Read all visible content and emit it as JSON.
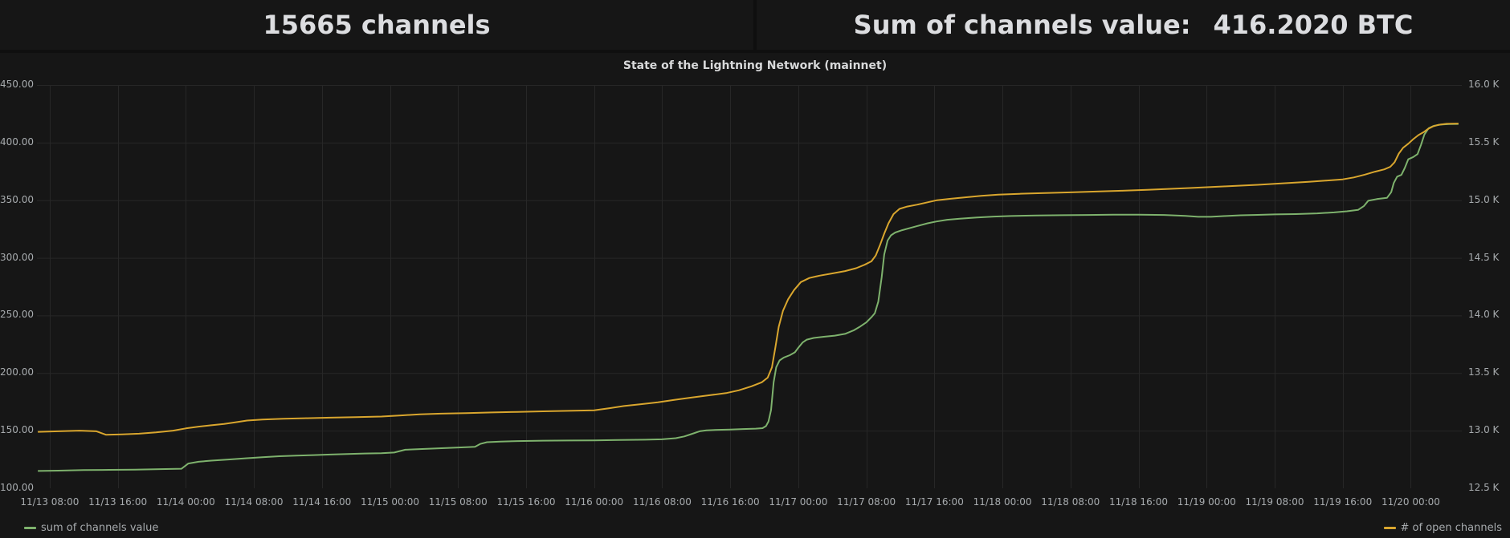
{
  "header": {
    "left_stat": "15665 channels",
    "right_stat_label": "Sum of channels value:",
    "right_stat_value": "416.2020 BTC"
  },
  "chart": {
    "title": "State of the Lightning Network (mainnet)",
    "legend": [
      {
        "label": "sum of channels value"
      },
      {
        "label": "# of open channels"
      }
    ]
  },
  "chart_data": {
    "type": "line",
    "title": "State of the Lightning Network (mainnet)",
    "grid": true,
    "legend_position": "bottom",
    "colors": {
      "grid": "#272727",
      "background": "#161616",
      "tick_text": "#a7abae",
      "green": "#7eb26d",
      "yellow": "#d9a62e"
    },
    "x_unit": "hours since 11/13 00:00",
    "x_range": [
      6.5,
      174
    ],
    "x_ticks": [
      {
        "t": 8,
        "label": "11/13 08:00"
      },
      {
        "t": 16,
        "label": "11/13 16:00"
      },
      {
        "t": 24,
        "label": "11/14 00:00"
      },
      {
        "t": 32,
        "label": "11/14 08:00"
      },
      {
        "t": 40,
        "label": "11/14 16:00"
      },
      {
        "t": 48,
        "label": "11/15 00:00"
      },
      {
        "t": 56,
        "label": "11/15 08:00"
      },
      {
        "t": 64,
        "label": "11/15 16:00"
      },
      {
        "t": 72,
        "label": "11/16 00:00"
      },
      {
        "t": 80,
        "label": "11/16 08:00"
      },
      {
        "t": 88,
        "label": "11/16 16:00"
      },
      {
        "t": 96,
        "label": "11/17 00:00"
      },
      {
        "t": 104,
        "label": "11/17 08:00"
      },
      {
        "t": 112,
        "label": "11/17 16:00"
      },
      {
        "t": 120,
        "label": "11/18 00:00"
      },
      {
        "t": 128,
        "label": "11/18 08:00"
      },
      {
        "t": 136,
        "label": "11/18 16:00"
      },
      {
        "t": 144,
        "label": "11/19 00:00"
      },
      {
        "t": 152,
        "label": "11/19 08:00"
      },
      {
        "t": 160,
        "label": "11/19 16:00"
      },
      {
        "t": 168,
        "label": "11/20 00:00"
      }
    ],
    "left_axis": {
      "range": [
        100,
        450
      ],
      "ticks": [
        100,
        150,
        200,
        250,
        300,
        350,
        400,
        450
      ],
      "labels": [
        "100.00",
        "150.00",
        "200.00",
        "250.00",
        "300.00",
        "350.00",
        "400.00",
        "450.00"
      ],
      "unit": "BTC"
    },
    "right_axis": {
      "range": [
        12.5,
        16.0
      ],
      "ticks": [
        12.5,
        13.0,
        13.5,
        14.0,
        14.5,
        15.0,
        15.5,
        16.0
      ],
      "labels": [
        "12.5 K",
        "13.0 K",
        "13.5 K",
        "14.0 K",
        "14.5 K",
        "15.0 K",
        "15.5 K",
        "16.0 K"
      ],
      "unit": "channels"
    },
    "series": [
      {
        "name": "sum of channels value",
        "axis": "left",
        "color": "#7eb26d",
        "final_value": 416.202,
        "points": [
          [
            6.6,
            115
          ],
          [
            9,
            115.3
          ],
          [
            12,
            115.8
          ],
          [
            15,
            116
          ],
          [
            18,
            116.2
          ],
          [
            21,
            116.6
          ],
          [
            23.5,
            117
          ],
          [
            24.3,
            121.5
          ],
          [
            25.5,
            123
          ],
          [
            27,
            124
          ],
          [
            29,
            125
          ],
          [
            31,
            126
          ],
          [
            33,
            127
          ],
          [
            35,
            127.8
          ],
          [
            37,
            128.3
          ],
          [
            39,
            128.8
          ],
          [
            41,
            129.3
          ],
          [
            43,
            129.8
          ],
          [
            45,
            130.2
          ],
          [
            47,
            130.5
          ],
          [
            48.5,
            131
          ],
          [
            49.8,
            133.5
          ],
          [
            51.5,
            134
          ],
          [
            53.5,
            134.6
          ],
          [
            55.5,
            135.2
          ],
          [
            57.2,
            135.8
          ],
          [
            58,
            136
          ],
          [
            58.6,
            138.5
          ],
          [
            59.4,
            140
          ],
          [
            61,
            140.6
          ],
          [
            63,
            141
          ],
          [
            66,
            141.3
          ],
          [
            69,
            141.5
          ],
          [
            72,
            141.6
          ],
          [
            75,
            141.9
          ],
          [
            78,
            142.2
          ],
          [
            80,
            142.5
          ],
          [
            81.6,
            143.5
          ],
          [
            82.6,
            145
          ],
          [
            83.4,
            147
          ],
          [
            84.4,
            149.5
          ],
          [
            85.2,
            150.3
          ],
          [
            86.5,
            150.7
          ],
          [
            88,
            151
          ],
          [
            89.5,
            151.4
          ],
          [
            91,
            151.8
          ],
          [
            91.8,
            152.2
          ],
          [
            92.2,
            154
          ],
          [
            92.5,
            158
          ],
          [
            92.8,
            168
          ],
          [
            93.1,
            192
          ],
          [
            93.4,
            205
          ],
          [
            93.8,
            211
          ],
          [
            94.3,
            213.5
          ],
          [
            95,
            215.5
          ],
          [
            95.6,
            218
          ],
          [
            96,
            222
          ],
          [
            96.5,
            226.5
          ],
          [
            97,
            229
          ],
          [
            97.8,
            230.5
          ],
          [
            99,
            231.5
          ],
          [
            100.3,
            232.5
          ],
          [
            101.5,
            234
          ],
          [
            102.5,
            237
          ],
          [
            103.3,
            240.5
          ],
          [
            104,
            244
          ],
          [
            104.6,
            248.5
          ],
          [
            105,
            252
          ],
          [
            105.4,
            262
          ],
          [
            105.8,
            283
          ],
          [
            106.1,
            303
          ],
          [
            106.5,
            315
          ],
          [
            106.9,
            319.5
          ],
          [
            107.4,
            322
          ],
          [
            108.2,
            324
          ],
          [
            109.2,
            326
          ],
          [
            110.2,
            328
          ],
          [
            111.2,
            330
          ],
          [
            112.2,
            331.5
          ],
          [
            113.5,
            333
          ],
          [
            115,
            334
          ],
          [
            117,
            335
          ],
          [
            119,
            335.8
          ],
          [
            121,
            336.3
          ],
          [
            124,
            336.8
          ],
          [
            127,
            337
          ],
          [
            130,
            337.2
          ],
          [
            133,
            337.4
          ],
          [
            136,
            337.4
          ],
          [
            139,
            337.2
          ],
          [
            141.5,
            336.4
          ],
          [
            143,
            335.6
          ],
          [
            144.5,
            335.6
          ],
          [
            146,
            336.2
          ],
          [
            148,
            336.9
          ],
          [
            150,
            337.3
          ],
          [
            152,
            337.7
          ],
          [
            154.5,
            338
          ],
          [
            157,
            338.6
          ],
          [
            159,
            339.4
          ],
          [
            160.5,
            340.4
          ],
          [
            161.8,
            341.6
          ],
          [
            162.5,
            345
          ],
          [
            163,
            349.5
          ],
          [
            164,
            351
          ],
          [
            165.2,
            352
          ],
          [
            165.7,
            357
          ],
          [
            166,
            365
          ],
          [
            166.4,
            370.5
          ],
          [
            166.9,
            372
          ],
          [
            167.3,
            378
          ],
          [
            167.7,
            385.5
          ],
          [
            168.3,
            387.5
          ],
          [
            168.8,
            390
          ],
          [
            169.2,
            398
          ],
          [
            169.6,
            407
          ],
          [
            170.1,
            412.5
          ],
          [
            170.7,
            414.5
          ],
          [
            171.5,
            415.6
          ],
          [
            172.5,
            416.1
          ],
          [
            173.6,
            416.2
          ]
        ]
      },
      {
        "name": "# of open channels",
        "axis": "right",
        "color": "#d9a62e",
        "final_value": 15.665,
        "points": [
          [
            6.6,
            12.99
          ],
          [
            9,
            12.995
          ],
          [
            11.5,
            13.0
          ],
          [
            13.5,
            12.995
          ],
          [
            14.6,
            12.965
          ],
          [
            16.5,
            12.968
          ],
          [
            18.5,
            12.974
          ],
          [
            20.5,
            12.985
          ],
          [
            22.5,
            13.0
          ],
          [
            24,
            13.02
          ],
          [
            25.5,
            13.035
          ],
          [
            27,
            13.047
          ],
          [
            28.5,
            13.058
          ],
          [
            29.8,
            13.072
          ],
          [
            31.2,
            13.088
          ],
          [
            33,
            13.097
          ],
          [
            35.5,
            13.103
          ],
          [
            38,
            13.108
          ],
          [
            41,
            13.113
          ],
          [
            44,
            13.118
          ],
          [
            47,
            13.123
          ],
          [
            49.5,
            13.133
          ],
          [
            51.5,
            13.142
          ],
          [
            54,
            13.148
          ],
          [
            57,
            13.153
          ],
          [
            60,
            13.158
          ],
          [
            63,
            13.163
          ],
          [
            66,
            13.168
          ],
          [
            69,
            13.172
          ],
          [
            72,
            13.176
          ],
          [
            73.8,
            13.195
          ],
          [
            75.5,
            13.214
          ],
          [
            77.5,
            13.23
          ],
          [
            79.5,
            13.246
          ],
          [
            81.5,
            13.268
          ],
          [
            83.5,
            13.288
          ],
          [
            85.5,
            13.307
          ],
          [
            87.5,
            13.326
          ],
          [
            89,
            13.35
          ],
          [
            90.5,
            13.385
          ],
          [
            91.7,
            13.42
          ],
          [
            92.4,
            13.46
          ],
          [
            92.9,
            13.55
          ],
          [
            93.3,
            13.72
          ],
          [
            93.7,
            13.9
          ],
          [
            94.2,
            14.04
          ],
          [
            94.8,
            14.14
          ],
          [
            95.5,
            14.22
          ],
          [
            96.3,
            14.29
          ],
          [
            97.3,
            14.325
          ],
          [
            98.5,
            14.345
          ],
          [
            100,
            14.365
          ],
          [
            101.5,
            14.385
          ],
          [
            102.8,
            14.41
          ],
          [
            103.8,
            14.44
          ],
          [
            104.6,
            14.47
          ],
          [
            105.1,
            14.52
          ],
          [
            105.6,
            14.61
          ],
          [
            106.1,
            14.71
          ],
          [
            106.6,
            14.8
          ],
          [
            107.2,
            14.88
          ],
          [
            107.9,
            14.925
          ],
          [
            108.8,
            14.945
          ],
          [
            110,
            14.962
          ],
          [
            111.2,
            14.982
          ],
          [
            112.3,
            15.0
          ],
          [
            113.8,
            15.012
          ],
          [
            115.5,
            15.024
          ],
          [
            117.5,
            15.038
          ],
          [
            119.5,
            15.048
          ],
          [
            122,
            15.056
          ],
          [
            125,
            15.062
          ],
          [
            128,
            15.068
          ],
          [
            131,
            15.075
          ],
          [
            134,
            15.082
          ],
          [
            137,
            15.09
          ],
          [
            139.5,
            15.098
          ],
          [
            142,
            15.106
          ],
          [
            144,
            15.113
          ],
          [
            146,
            15.12
          ],
          [
            148,
            15.127
          ],
          [
            150,
            15.134
          ],
          [
            152,
            15.142
          ],
          [
            154,
            15.151
          ],
          [
            156,
            15.16
          ],
          [
            158,
            15.17
          ],
          [
            160,
            15.181
          ],
          [
            161.3,
            15.198
          ],
          [
            162.6,
            15.222
          ],
          [
            163.8,
            15.248
          ],
          [
            164.9,
            15.268
          ],
          [
            165.6,
            15.29
          ],
          [
            166.1,
            15.33
          ],
          [
            166.6,
            15.405
          ],
          [
            167.1,
            15.455
          ],
          [
            167.7,
            15.49
          ],
          [
            168.3,
            15.53
          ],
          [
            168.9,
            15.565
          ],
          [
            169.5,
            15.59
          ],
          [
            170,
            15.617
          ],
          [
            170.6,
            15.64
          ],
          [
            171.3,
            15.655
          ],
          [
            172.2,
            15.663
          ],
          [
            173.6,
            15.665
          ]
        ]
      }
    ]
  }
}
